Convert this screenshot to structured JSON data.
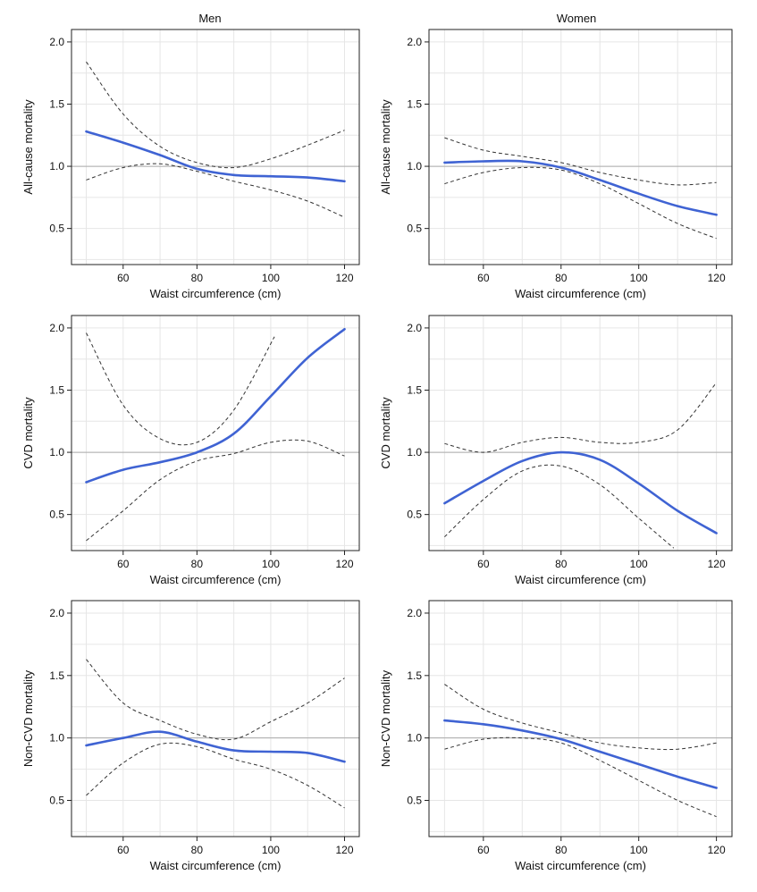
{
  "column_titles": [
    "Men",
    "Women"
  ],
  "colors": {
    "estimate": "#3f63d3",
    "ci": "#333333",
    "reference": "#aaaaaa",
    "grid": "#e6e6e6",
    "frame": "#222222"
  },
  "chart_data": [
    {
      "type": "line",
      "title": "Men",
      "panel": "row1-men",
      "xlabel": "Waist circumference (cm)",
      "ylabel": "All-cause mortality",
      "xlim": [
        46,
        124
      ],
      "ylim": [
        0.21,
        2.1
      ],
      "xticks": [
        60,
        80,
        100,
        120
      ],
      "yticks": [
        0.5,
        1.0,
        1.5,
        2.0
      ],
      "ytick_labels": [
        "0.5",
        "1.0",
        "1.5",
        "2.0"
      ],
      "reference_y": 1.0,
      "grid": true,
      "series": [
        {
          "name": "estimate",
          "x": [
            50,
            60,
            70,
            80,
            90,
            100,
            110,
            120
          ],
          "y": [
            1.28,
            1.19,
            1.09,
            0.98,
            0.93,
            0.92,
            0.91,
            0.88
          ]
        },
        {
          "name": "upper 95% CI",
          "x": [
            50,
            60,
            70,
            80,
            90,
            100,
            110,
            120
          ],
          "y": [
            1.84,
            1.42,
            1.16,
            1.03,
            0.99,
            1.06,
            1.17,
            1.29
          ]
        },
        {
          "name": "lower 95% CI",
          "x": [
            50,
            60,
            70,
            80,
            90,
            100,
            110,
            120
          ],
          "y": [
            0.89,
            0.99,
            1.02,
            0.96,
            0.88,
            0.81,
            0.72,
            0.59
          ]
        }
      ]
    },
    {
      "type": "line",
      "title": "Women",
      "panel": "row1-women",
      "xlabel": "Waist circumference (cm)",
      "ylabel": "All-cause mortality",
      "xlim": [
        46,
        124
      ],
      "ylim": [
        0.21,
        2.1
      ],
      "xticks": [
        60,
        80,
        100,
        120
      ],
      "yticks": [
        0.5,
        1.0,
        1.5,
        2.0
      ],
      "ytick_labels": [
        "0.5",
        "1.0",
        "1.5",
        "2.0"
      ],
      "reference_y": 1.0,
      "grid": true,
      "series": [
        {
          "name": "estimate",
          "x": [
            50,
            60,
            70,
            80,
            90,
            100,
            110,
            120
          ],
          "y": [
            1.03,
            1.04,
            1.04,
            0.99,
            0.89,
            0.78,
            0.68,
            0.61
          ]
        },
        {
          "name": "upper 95% CI",
          "x": [
            50,
            60,
            70,
            80,
            90,
            100,
            110,
            120
          ],
          "y": [
            1.23,
            1.13,
            1.08,
            1.03,
            0.95,
            0.89,
            0.85,
            0.87
          ]
        },
        {
          "name": "lower 95% CI",
          "x": [
            50,
            60,
            70,
            80,
            90,
            100,
            110,
            120
          ],
          "y": [
            0.86,
            0.95,
            0.99,
            0.97,
            0.86,
            0.7,
            0.54,
            0.42
          ]
        }
      ]
    },
    {
      "type": "line",
      "title": "Men",
      "panel": "row2-men",
      "xlabel": "Waist circumference (cm)",
      "ylabel": "CVD mortality",
      "xlim": [
        46,
        124
      ],
      "ylim": [
        0.21,
        2.1
      ],
      "xticks": [
        60,
        80,
        100,
        120
      ],
      "yticks": [
        0.5,
        1.0,
        1.5,
        2.0
      ],
      "ytick_labels": [
        "0.5",
        "1.0",
        "1.5",
        "2.0"
      ],
      "reference_y": 1.0,
      "grid": true,
      "series": [
        {
          "name": "estimate",
          "x": [
            50,
            60,
            70,
            80,
            90,
            100,
            110,
            120
          ],
          "y": [
            0.76,
            0.86,
            0.92,
            1.0,
            1.15,
            1.45,
            1.76,
            1.99
          ]
        },
        {
          "name": "upper 95% CI",
          "x": [
            50,
            60,
            70,
            80,
            90,
            101
          ],
          "y": [
            1.96,
            1.38,
            1.11,
            1.08,
            1.34,
            1.93
          ]
        },
        {
          "name": "lower 95% CI",
          "x": [
            50,
            60,
            70,
            80,
            90,
            100,
            110,
            120
          ],
          "y": [
            0.29,
            0.53,
            0.78,
            0.93,
            0.99,
            1.08,
            1.09,
            0.97
          ]
        }
      ]
    },
    {
      "type": "line",
      "title": "Women",
      "panel": "row2-women",
      "xlabel": "Waist circumference (cm)",
      "ylabel": "CVD mortality",
      "xlim": [
        46,
        124
      ],
      "ylim": [
        0.21,
        2.1
      ],
      "xticks": [
        60,
        80,
        100,
        120
      ],
      "yticks": [
        0.5,
        1.0,
        1.5,
        2.0
      ],
      "ytick_labels": [
        "0.5",
        "1.0",
        "1.5",
        "2.0"
      ],
      "reference_y": 1.0,
      "grid": true,
      "series": [
        {
          "name": "estimate",
          "x": [
            50,
            60,
            70,
            80,
            90,
            100,
            110,
            120
          ],
          "y": [
            0.59,
            0.77,
            0.93,
            1.0,
            0.94,
            0.75,
            0.53,
            0.35
          ]
        },
        {
          "name": "upper 95% CI",
          "x": [
            50,
            60,
            70,
            80,
            90,
            100,
            110,
            120
          ],
          "y": [
            1.07,
            1.0,
            1.08,
            1.12,
            1.08,
            1.08,
            1.18,
            1.56
          ]
        },
        {
          "name": "lower 95% CI",
          "x": [
            50,
            60,
            70,
            80,
            90,
            100,
            109
          ],
          "y": [
            0.32,
            0.62,
            0.85,
            0.89,
            0.74,
            0.47,
            0.23
          ]
        }
      ]
    },
    {
      "type": "line",
      "title": "Men",
      "panel": "row3-men",
      "xlabel": "Waist circumference (cm)",
      "ylabel": "Non-CVD mortality",
      "xlim": [
        46,
        124
      ],
      "ylim": [
        0.21,
        2.1
      ],
      "xticks": [
        60,
        80,
        100,
        120
      ],
      "yticks": [
        0.5,
        1.0,
        1.5,
        2.0
      ],
      "ytick_labels": [
        "0.5",
        "1.0",
        "1.5",
        "2.0"
      ],
      "reference_y": 1.0,
      "grid": true,
      "series": [
        {
          "name": "estimate",
          "x": [
            50,
            60,
            70,
            80,
            90,
            100,
            110,
            120
          ],
          "y": [
            0.94,
            1.0,
            1.05,
            0.97,
            0.9,
            0.89,
            0.88,
            0.81
          ]
        },
        {
          "name": "upper 95% CI",
          "x": [
            50,
            60,
            70,
            80,
            90,
            100,
            110,
            120
          ],
          "y": [
            1.63,
            1.28,
            1.14,
            1.03,
            0.99,
            1.13,
            1.28,
            1.48
          ]
        },
        {
          "name": "lower 95% CI",
          "x": [
            50,
            60,
            70,
            80,
            90,
            100,
            110,
            120
          ],
          "y": [
            0.54,
            0.8,
            0.95,
            0.93,
            0.83,
            0.75,
            0.62,
            0.44
          ]
        }
      ]
    },
    {
      "type": "line",
      "title": "Women",
      "panel": "row3-women",
      "xlabel": "Waist circumference (cm)",
      "ylabel": "Non-CVD mortality",
      "xlim": [
        46,
        124
      ],
      "ylim": [
        0.21,
        2.1
      ],
      "xticks": [
        60,
        80,
        100,
        120
      ],
      "yticks": [
        0.5,
        1.0,
        1.5,
        2.0
      ],
      "ytick_labels": [
        "0.5",
        "1.0",
        "1.5",
        "2.0"
      ],
      "reference_y": 1.0,
      "grid": true,
      "series": [
        {
          "name": "estimate",
          "x": [
            50,
            60,
            70,
            80,
            90,
            100,
            110,
            120
          ],
          "y": [
            1.14,
            1.11,
            1.06,
            0.99,
            0.89,
            0.79,
            0.69,
            0.6
          ]
        },
        {
          "name": "upper 95% CI",
          "x": [
            50,
            60,
            70,
            80,
            90,
            100,
            110,
            120
          ],
          "y": [
            1.43,
            1.23,
            1.12,
            1.04,
            0.96,
            0.92,
            0.91,
            0.96
          ]
        },
        {
          "name": "lower 95% CI",
          "x": [
            50,
            60,
            70,
            80,
            90,
            100,
            110,
            120
          ],
          "y": [
            0.91,
            0.99,
            1.0,
            0.96,
            0.82,
            0.66,
            0.5,
            0.37
          ]
        }
      ]
    }
  ]
}
